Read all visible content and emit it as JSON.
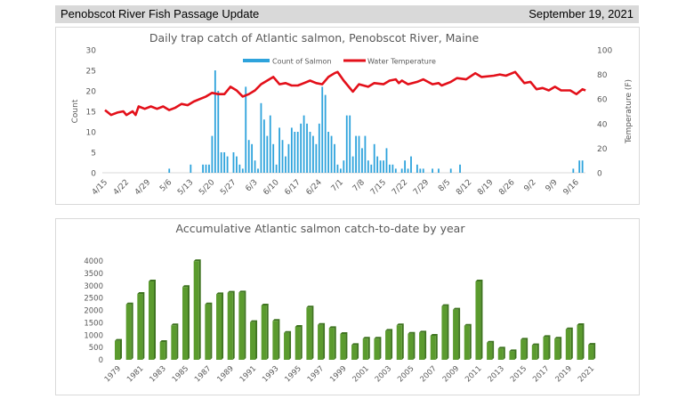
{
  "header": {
    "title": "Penobscot River Fish Passage Update",
    "date": "September 19, 2021"
  },
  "chart_data": [
    {
      "type": "bar",
      "title": "Daily trap catch of Atlantic salmon, Penobscot River, Maine",
      "xlabel": "",
      "ylabel": "Count",
      "y2label": "Temperature (F)",
      "ylim": [
        0,
        30
      ],
      "y2lim": [
        0,
        100
      ],
      "yticks": [
        "0",
        "5",
        "10",
        "15",
        "20",
        "25",
        "30"
      ],
      "y2ticks": [
        "0",
        "20",
        "40",
        "60",
        "80",
        "100"
      ],
      "x_range": [
        "4/15",
        "9/19"
      ],
      "xticks": [
        "4/15",
        "4/22",
        "4/29",
        "5/6",
        "5/13",
        "5/20",
        "5/27",
        "6/3",
        "6/10",
        "6/17",
        "6/24",
        "7/1",
        "7/8",
        "7/15",
        "7/22",
        "7/29",
        "8/5",
        "8/12",
        "8/19",
        "8/26",
        "9/2",
        "9/9",
        "9/16"
      ],
      "legend_position": "top",
      "series": [
        {
          "name": "Count of Salmon",
          "type": "bar",
          "axis": "left",
          "color": "#2ea3dc",
          "points": [
            [
              "5/6",
              1
            ],
            [
              "5/13",
              2
            ],
            [
              "5/17",
              2
            ],
            [
              "5/18",
              2
            ],
            [
              "5/19",
              2
            ],
            [
              "5/20",
              9
            ],
            [
              "5/21",
              25
            ],
            [
              "5/22",
              20
            ],
            [
              "5/23",
              5
            ],
            [
              "5/24",
              5
            ],
            [
              "5/25",
              4
            ],
            [
              "5/27",
              5
            ],
            [
              "5/28",
              4
            ],
            [
              "5/29",
              2
            ],
            [
              "5/30",
              1
            ],
            [
              "5/31",
              21
            ],
            [
              "6/1",
              8
            ],
            [
              "6/2",
              7
            ],
            [
              "6/3",
              3
            ],
            [
              "6/4",
              1
            ],
            [
              "6/5",
              17
            ],
            [
              "6/6",
              13
            ],
            [
              "6/7",
              9
            ],
            [
              "6/8",
              14
            ],
            [
              "6/9",
              7
            ],
            [
              "6/10",
              2
            ],
            [
              "6/11",
              11
            ],
            [
              "6/12",
              8
            ],
            [
              "6/13",
              4
            ],
            [
              "6/14",
              7
            ],
            [
              "6/15",
              11
            ],
            [
              "6/16",
              10
            ],
            [
              "6/17",
              10
            ],
            [
              "6/18",
              12
            ],
            [
              "6/19",
              14
            ],
            [
              "6/20",
              12
            ],
            [
              "6/21",
              10
            ],
            [
              "6/22",
              9
            ],
            [
              "6/23",
              7
            ],
            [
              "6/24",
              12
            ],
            [
              "6/25",
              21
            ],
            [
              "6/26",
              19
            ],
            [
              "6/27",
              10
            ],
            [
              "6/28",
              9
            ],
            [
              "6/29",
              7
            ],
            [
              "6/30",
              2
            ],
            [
              "7/1",
              1
            ],
            [
              "7/2",
              3
            ],
            [
              "7/3",
              14
            ],
            [
              "7/4",
              14
            ],
            [
              "7/5",
              4
            ],
            [
              "7/6",
              9
            ],
            [
              "7/7",
              9
            ],
            [
              "7/8",
              6
            ],
            [
              "7/9",
              9
            ],
            [
              "7/10",
              3
            ],
            [
              "7/11",
              2
            ],
            [
              "7/12",
              7
            ],
            [
              "7/13",
              4
            ],
            [
              "7/14",
              3
            ],
            [
              "7/15",
              3
            ],
            [
              "7/16",
              6
            ],
            [
              "7/17",
              2
            ],
            [
              "7/18",
              2
            ],
            [
              "7/19",
              1
            ],
            [
              "7/21",
              1
            ],
            [
              "7/22",
              3
            ],
            [
              "7/23",
              1
            ],
            [
              "7/24",
              4
            ],
            [
              "7/26",
              2
            ],
            [
              "7/27",
              1
            ],
            [
              "7/28",
              1
            ],
            [
              "7/31",
              1
            ],
            [
              "8/2",
              1
            ],
            [
              "8/6",
              1
            ],
            [
              "8/9",
              2
            ],
            [
              "9/15",
              1
            ],
            [
              "9/17",
              3
            ],
            [
              "9/18",
              3
            ]
          ]
        },
        {
          "name": "Water Temperature",
          "type": "line",
          "axis": "right",
          "color": "#e3101a",
          "points": [
            [
              "4/15",
              51
            ],
            [
              "4/17",
              47
            ],
            [
              "4/19",
              49
            ],
            [
              "4/21",
              50
            ],
            [
              "4/22",
              47
            ],
            [
              "4/24",
              50
            ],
            [
              "4/25",
              47
            ],
            [
              "4/26",
              54
            ],
            [
              "4/28",
              52
            ],
            [
              "4/30",
              54
            ],
            [
              "5/2",
              52
            ],
            [
              "5/4",
              54
            ],
            [
              "5/6",
              51
            ],
            [
              "5/8",
              53
            ],
            [
              "5/10",
              56
            ],
            [
              "5/12",
              55
            ],
            [
              "5/14",
              58
            ],
            [
              "5/16",
              60
            ],
            [
              "5/18",
              62
            ],
            [
              "5/20",
              65
            ],
            [
              "5/22",
              64
            ],
            [
              "5/24",
              64
            ],
            [
              "5/26",
              70
            ],
            [
              "5/28",
              67
            ],
            [
              "5/30",
              62
            ],
            [
              "6/1",
              64
            ],
            [
              "6/3",
              67
            ],
            [
              "6/5",
              72
            ],
            [
              "6/7",
              75
            ],
            [
              "6/9",
              78
            ],
            [
              "6/11",
              72
            ],
            [
              "6/13",
              73
            ],
            [
              "6/15",
              71
            ],
            [
              "6/17",
              71
            ],
            [
              "6/19",
              73
            ],
            [
              "6/21",
              75
            ],
            [
              "6/23",
              73
            ],
            [
              "6/25",
              72
            ],
            [
              "6/27",
              78
            ],
            [
              "6/29",
              81
            ],
            [
              "6/30",
              82
            ],
            [
              "7/2",
              75
            ],
            [
              "7/5",
              66
            ],
            [
              "7/7",
              72
            ],
            [
              "7/10",
              70
            ],
            [
              "7/12",
              73
            ],
            [
              "7/15",
              72
            ],
            [
              "7/17",
              75
            ],
            [
              "7/19",
              76
            ],
            [
              "7/20",
              73
            ],
            [
              "7/21",
              75
            ],
            [
              "7/23",
              72
            ],
            [
              "7/26",
              74
            ],
            [
              "7/28",
              76
            ],
            [
              "7/31",
              72
            ],
            [
              "8/2",
              73
            ],
            [
              "8/3",
              71
            ],
            [
              "8/6",
              74
            ],
            [
              "8/8",
              77
            ],
            [
              "8/11",
              76
            ],
            [
              "8/14",
              81
            ],
            [
              "8/16",
              78
            ],
            [
              "8/20",
              79
            ],
            [
              "8/22",
              80
            ],
            [
              "8/24",
              79
            ],
            [
              "8/27",
              82
            ],
            [
              "8/29",
              76
            ],
            [
              "8/30",
              73
            ],
            [
              "9/1",
              74
            ],
            [
              "9/3",
              68
            ],
            [
              "9/5",
              69
            ],
            [
              "9/7",
              67
            ],
            [
              "9/9",
              70
            ],
            [
              "9/11",
              67
            ],
            [
              "9/14",
              67
            ],
            [
              "9/16",
              64
            ],
            [
              "9/18",
              68
            ],
            [
              "9/19",
              67
            ]
          ]
        }
      ],
      "grid": false
    },
    {
      "type": "bar",
      "title": "Accumulative Atlantic salmon catch-to-date by year",
      "xlabel": "",
      "ylabel": "",
      "ylim": [
        0,
        4000
      ],
      "yticks": [
        "0",
        "500",
        "1000",
        "1500",
        "2000",
        "2500",
        "3000",
        "3500",
        "4000"
      ],
      "color": "#5b9b2e",
      "grid": false,
      "categories": [
        "1979",
        "1980",
        "1981",
        "1982",
        "1983",
        "1984",
        "1985",
        "1986",
        "1987",
        "1988",
        "1989",
        "1990",
        "1991",
        "1992",
        "1993",
        "1994",
        "1995",
        "1996",
        "1997",
        "1998",
        "1999",
        "2000",
        "2001",
        "2002",
        "2003",
        "2004",
        "2005",
        "2006",
        "2007",
        "2008",
        "2009",
        "2010",
        "2011",
        "2012",
        "2013",
        "2014",
        "2015",
        "2016",
        "2017",
        "2018",
        "2019",
        "2020",
        "2021"
      ],
      "xtick_labels": [
        "1979",
        "1981",
        "1983",
        "1985",
        "1987",
        "1989",
        "1991",
        "1993",
        "1995",
        "1997",
        "1999",
        "2001",
        "2003",
        "2005",
        "2007",
        "2009",
        "2011",
        "2013",
        "2015",
        "2017",
        "2019",
        "2021"
      ],
      "values": [
        770,
        2245,
        2665,
        3170,
        720,
        1395,
        2945,
        3990,
        2245,
        2655,
        2715,
        2725,
        1525,
        2200,
        1575,
        1090,
        1335,
        2115,
        1415,
        1285,
        1045,
        600,
        855,
        855,
        1175,
        1395,
        1055,
        1105,
        975,
        2175,
        2030,
        1380,
        3170,
        695,
        455,
        345,
        815,
        590,
        925,
        855,
        1235,
        1405,
        610
      ]
    }
  ]
}
